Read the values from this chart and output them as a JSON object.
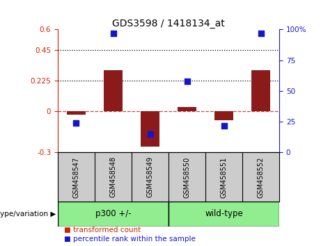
{
  "title": "GDS3598 / 1418134_at",
  "samples": [
    "GSM458547",
    "GSM458548",
    "GSM458549",
    "GSM458550",
    "GSM458551",
    "GSM458552"
  ],
  "transformed_count": [
    -0.022,
    0.3,
    -0.255,
    0.032,
    -0.063,
    0.3
  ],
  "percentile_rank": [
    24,
    97,
    15,
    58,
    22,
    97
  ],
  "ylim_left": [
    -0.3,
    0.6
  ],
  "ylim_right": [
    0,
    100
  ],
  "yticks_left": [
    -0.3,
    0.0,
    0.225,
    0.45,
    0.6
  ],
  "yticks_right": [
    0,
    25,
    50,
    75,
    100
  ],
  "ytick_labels_left": [
    "-0.3",
    "0",
    "0.225",
    "0.45",
    "0.6"
  ],
  "ytick_labels_right": [
    "0",
    "25",
    "50",
    "75",
    "100%"
  ],
  "hlines_dotted": [
    0.225,
    0.45
  ],
  "hline_dashed": 0.0,
  "bar_color": "#8B1A1A",
  "dot_color": "#1515CC",
  "left_axis_color": "#CC2200",
  "right_axis_color": "#1515CC",
  "groups": [
    {
      "label": "p300 +/-",
      "samples": [
        0,
        1,
        2
      ],
      "color": "#90EE90"
    },
    {
      "label": "wild-type",
      "samples": [
        3,
        4,
        5
      ],
      "color": "#90EE90"
    }
  ],
  "genotype_label": "genotype/variation",
  "legend_items": [
    {
      "label": "transformed count",
      "color": "#CC2200"
    },
    {
      "label": "percentile rank within the sample",
      "color": "#1515CC"
    }
  ],
  "bar_width": 0.5,
  "dot_size": 35,
  "background_color": "#ffffff",
  "plot_bg_color": "#ffffff",
  "tick_label_area_color": "#cccccc"
}
